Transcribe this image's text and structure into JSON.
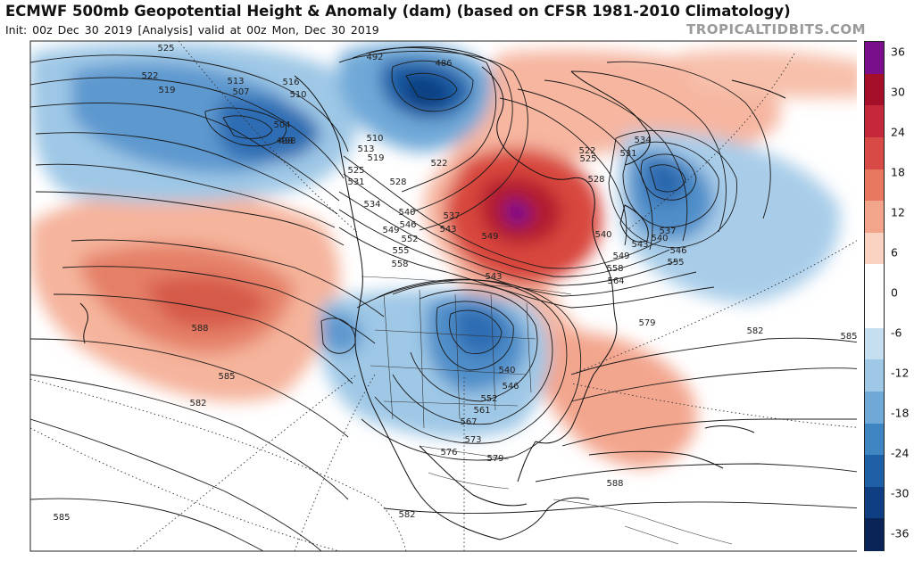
{
  "header": {
    "title": "ECMWF 500mb Geopotential Height & Anomaly (dam) (based on CFSR 1981-2010 Climatology)",
    "init": "Init: 00z Dec 30 2019",
    "analysis": "[Analysis]",
    "valid": "valid at 00z Mon, Dec 30 2019",
    "brand": "TROPICALTIDBITS.COM"
  },
  "colorbar": {
    "ticks": [
      "36",
      "30",
      "24",
      "18",
      "12",
      "6",
      "0",
      "-6",
      "-12",
      "-18",
      "-24",
      "-30",
      "-36"
    ],
    "colors": [
      "#7a0f8c",
      "#a50f2a",
      "#c4283a",
      "#d84a45",
      "#e8775f",
      "#f3a58c",
      "#fad2c1",
      "#ffffff",
      "#ffffff",
      "#c6dff0",
      "#9fc8e6",
      "#6fa9d8",
      "#3f85c2",
      "#1f5fa6",
      "#0f3f82",
      "#0a2458"
    ]
  },
  "contour_labels": [
    "525",
    "522",
    "519",
    "513",
    "507",
    "516",
    "510",
    "492",
    "486",
    "498",
    "504",
    "510",
    "513",
    "519",
    "525",
    "531",
    "522",
    "528",
    "534",
    "540",
    "546",
    "549",
    "552",
    "555",
    "558",
    "537",
    "543",
    "549",
    "531",
    "534",
    "528",
    "525",
    "522",
    "537",
    "540",
    "546",
    "555",
    "540",
    "543",
    "549",
    "558",
    "564",
    "579",
    "582",
    "585",
    "588",
    "585",
    "582",
    "543",
    "540",
    "546",
    "552",
    "561",
    "567",
    "573",
    "576",
    "579",
    "588",
    "582",
    "585",
    "498"
  ]
}
